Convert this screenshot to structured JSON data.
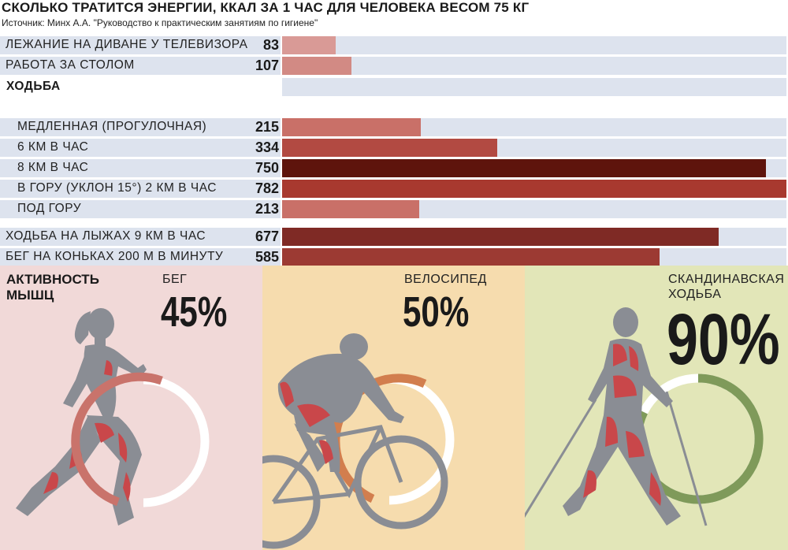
{
  "header": {
    "title": "Сколько тратится энергии, ккал за 1 час для человека весом 75 кг",
    "source": "Источник: Минх А.А. \"Руководство к практическим занятиям по гигиене\""
  },
  "chart_data": [
    {
      "type": "bar",
      "orientation": "horizontal",
      "title": "Сколько тратится энергии, ккал за 1 час для человека весом 75 кг",
      "group_label": "ХОДЬБА",
      "categories": [
        "ЛЕЖАНИЕ НА ДИВАНЕ У ТЕЛЕВИЗОРА",
        "РАБОТА ЗА СТОЛОМ",
        "МЕДЛЕННАЯ (ПРОГУЛОЧНАЯ)",
        "6 КМ В ЧАС",
        "8 КМ В ЧАС",
        "В ГОРУ (УКЛОН 15°) 2 КМ В ЧАС",
        "ПОД ГОРУ",
        "ХОДЬБА НА ЛЫЖАХ 9 КМ В ЧАС",
        "БЕГ НА КОНЬКАХ 200 М В МИНУТУ"
      ],
      "values": [
        83,
        107,
        215,
        334,
        750,
        782,
        213,
        677,
        585
      ],
      "bar_colors": [
        "#d99a96",
        "#d28a84",
        "#c97068",
        "#b24a42",
        "#5e140c",
        "#a8392f",
        "#c97068",
        "#7f2a25",
        "#9c3a33"
      ]
    },
    {
      "type": "pie",
      "title": "АКТИВНОСТЬ МЫШЦ",
      "categories": [
        "БЕГ",
        "ВЕЛОСИПЕД",
        "СКАНДИНАВСКАЯ ХОДЬБА"
      ],
      "values": [
        45,
        50,
        90
      ],
      "labels": [
        "45%",
        "50%",
        "90%"
      ],
      "colors": [
        "#c9736b",
        "#d27e4e",
        "#7f9a5a"
      ]
    }
  ],
  "activity": {
    "heading": "АКТИВНОСТЬ МЫШЦ",
    "items": [
      {
        "name": "БЕГ",
        "pct": "45%",
        "bg": "#f1d9d8",
        "ring": "#c9736b"
      },
      {
        "name": "ВЕЛОСИПЕД",
        "pct": "50%",
        "bg": "#f6dcae",
        "ring": "#d27e4e"
      },
      {
        "name": "СКАНДИНАВСКАЯ ХОДЬБА",
        "pct": "90%",
        "bg": "#e2e6b8",
        "ring": "#7f9a5a"
      }
    ]
  },
  "colors": {
    "track": "#dde3ee",
    "silhouette": "#8a8d94",
    "muscle": "#c9474a"
  }
}
